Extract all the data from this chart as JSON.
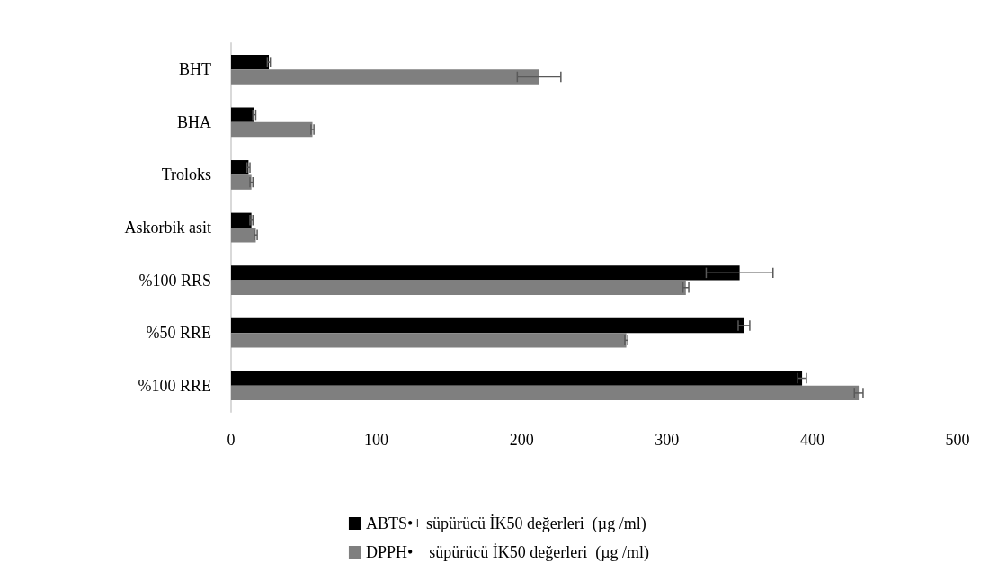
{
  "chart_data": {
    "type": "bar",
    "orientation": "horizontal",
    "categories": [
      "BHT",
      "BHA",
      "Troloks",
      "Askorbik asit",
      "%100 RRS",
      "%50 RRE",
      "%100 RRE"
    ],
    "series": [
      {
        "name": "ABTS•+ süpürücü İK50 değerleri  (µg /ml)",
        "color": "#000000",
        "values": [
          26,
          16,
          12,
          14,
          350,
          353,
          393
        ],
        "errors": [
          1,
          1,
          1,
          1,
          23,
          4,
          3
        ]
      },
      {
        "name": "DPPH•    süpürücü İK50 değerleri  (µg /ml)",
        "color": "#7f7f7f",
        "values": [
          212,
          56,
          14,
          17,
          313,
          272,
          432
        ],
        "errors": [
          15,
          1,
          1,
          1,
          2,
          1,
          3
        ]
      }
    ],
    "xlim": [
      0,
      500
    ],
    "xticks": [
      0,
      100,
      200,
      300,
      400,
      500
    ],
    "grid": false,
    "legend": "bottom"
  }
}
